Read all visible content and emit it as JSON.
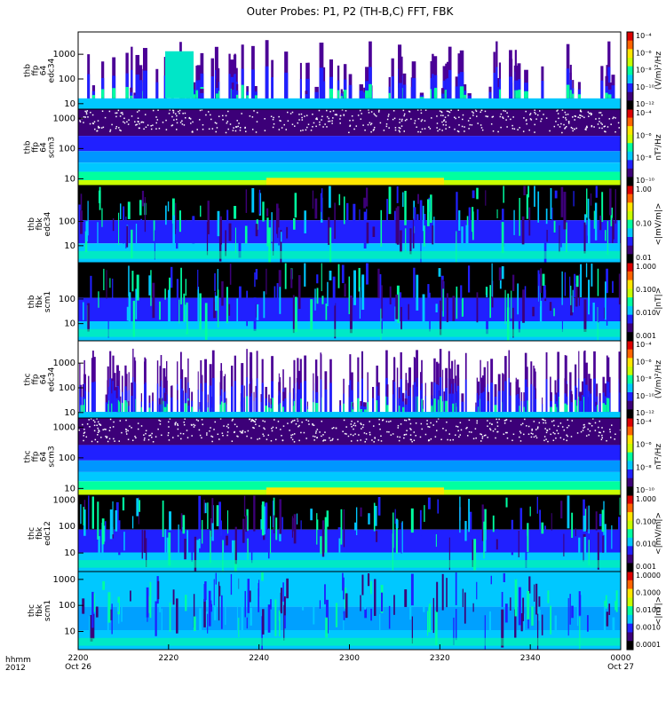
{
  "chart_data": {
    "type": "heatmap",
    "title": "Outer Probes: P1, P2 (TH-B,C) FFT, FBK",
    "xaxis": {
      "corner_labels": [
        "hhmm",
        "2012"
      ],
      "ticks": [
        {
          "major": "2200",
          "minor": "Oct 26"
        },
        {
          "major": "2220",
          "minor": ""
        },
        {
          "major": "2240",
          "minor": ""
        },
        {
          "major": "2300",
          "minor": ""
        },
        {
          "major": "2320",
          "minor": ""
        },
        {
          "major": "2340",
          "minor": ""
        },
        {
          "major": "0000",
          "minor": "Oct 27"
        }
      ],
      "range_minutes": [
        0,
        120
      ]
    },
    "panels": [
      {
        "id": "thb-ffp-e",
        "ylabel": [
          "thb",
          "ffp",
          "64",
          "edc34"
        ],
        "yticks": [
          "1000",
          "100",
          "10"
        ],
        "yrange_hz": [
          6,
          8000
        ],
        "zlabel": "(V/m)²/Hz",
        "zticks": [
          "10⁻⁴",
          "10⁻⁶",
          "10⁻⁸",
          "10⁻¹⁰",
          "10⁻¹²"
        ],
        "style": "spiky"
      },
      {
        "id": "thb-ffp-b",
        "ylabel": [
          "thb",
          "ffp",
          "64",
          "scm3"
        ],
        "yticks": [
          "1000",
          "100",
          "10"
        ],
        "yrange_hz": [
          6,
          2000
        ],
        "zlabel": "nT²/Hz",
        "zticks": [
          "10⁻⁴",
          "10⁻⁶",
          "10⁻⁸",
          "10⁻¹⁰"
        ],
        "style": "layered"
      },
      {
        "id": "thb-fbk-e",
        "ylabel": [
          "thb",
          "fbk",
          "edc34"
        ],
        "yticks": [
          "100",
          "10"
        ],
        "yrange_hz": [
          2,
          3000
        ],
        "zlabel": "<|mV/m|>",
        "zticks": [
          "1.00",
          "0.10",
          "0.01"
        ],
        "style": "fbk-e-b"
      },
      {
        "id": "thb-fbk-b",
        "ylabel": [
          "thb",
          "fbk",
          "scm1"
        ],
        "yticks": [
          "100",
          "10"
        ],
        "yrange_hz": [
          2,
          3000
        ],
        "zlabel": "<|nT|>",
        "zticks": [
          "1.000",
          "0.100",
          "0.010",
          "0.001"
        ],
        "style": "fbk-b-b"
      },
      {
        "id": "thc-ffp-e",
        "ylabel": [
          "thc",
          "ffp",
          "64",
          "edc34"
        ],
        "yticks": [
          "1000",
          "100",
          "10"
        ],
        "yrange_hz": [
          6,
          8000
        ],
        "zlabel": "(V/m)²/Hz",
        "zticks": [
          "10⁻⁴",
          "10⁻⁶",
          "10⁻⁸",
          "10⁻¹⁰",
          "10⁻¹²"
        ],
        "style": "spiky-c"
      },
      {
        "id": "thc-ffp-b",
        "ylabel": [
          "thc",
          "ffp",
          "64",
          "scm3"
        ],
        "yticks": [
          "1000",
          "100",
          "10"
        ],
        "yrange_hz": [
          6,
          2000
        ],
        "zlabel": "nT²/Hz",
        "zticks": [
          "10⁻⁴",
          "10⁻⁶",
          "10⁻⁸",
          "10⁻¹⁰"
        ],
        "style": "layered"
      },
      {
        "id": "thc-fbk-e",
        "ylabel": [
          "thc",
          "fbk",
          "edc12"
        ],
        "yticks": [
          "1000",
          "100",
          "10"
        ],
        "yrange_hz": [
          2,
          1500
        ],
        "zlabel": "<|mV/m|>",
        "zticks": [
          "1.000",
          "0.100",
          "0.010",
          "0.001"
        ],
        "style": "fbk-e-c"
      },
      {
        "id": "thc-fbk-b",
        "ylabel": [
          "thc",
          "fbk",
          "scm1"
        ],
        "yticks": [
          "1000",
          "100",
          "10"
        ],
        "yrange_hz": [
          2,
          2000
        ],
        "zlabel": "<|nT|>",
        "zticks": [
          "1.0000",
          "0.1000",
          "0.0100",
          "0.0010",
          "0.0001"
        ],
        "style": "fbk-b-c"
      }
    ]
  },
  "colorbar_colors": [
    "#000000",
    "#3c0078",
    "#2020ff",
    "#00c8ff",
    "#00ffa0",
    "#c8ff00",
    "#ffe600",
    "#ff6400",
    "#dc0000"
  ]
}
